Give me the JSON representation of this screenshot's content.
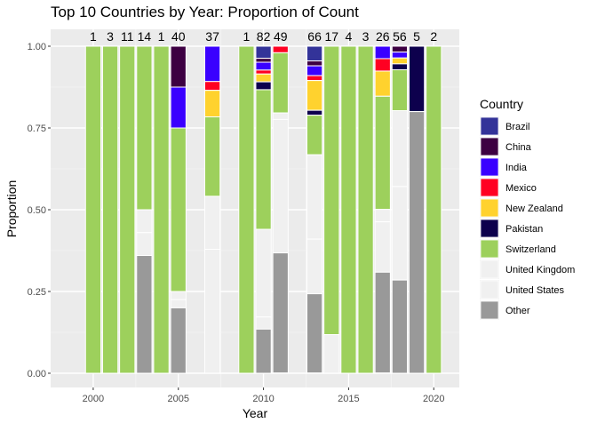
{
  "chart_data": {
    "type": "bar",
    "stacked": true,
    "title": "Top 10 Countries by Year: Proportion of Count",
    "xlabel": "Year",
    "ylabel": "Proportion",
    "xlim": [
      1997.5,
      2021.5
    ],
    "ylim": [
      0,
      1.0
    ],
    "x_ticks": [
      2000,
      2005,
      2010,
      2015,
      2020
    ],
    "y_ticks": [
      0.0,
      0.25,
      0.5,
      0.75,
      1.0
    ],
    "y_tick_labels": [
      "0.00",
      "0.25",
      "0.50",
      "0.75",
      "1.00"
    ],
    "legend": {
      "title": "Country",
      "placement": "right",
      "entries": [
        {
          "name": "Brazil",
          "color": "#333399"
        },
        {
          "name": "China",
          "color": "#3D0042"
        },
        {
          "name": "India",
          "color": "#3A00FF"
        },
        {
          "name": "Mexico",
          "color": "#FF0022"
        },
        {
          "name": "New Zealand",
          "color": "#FFD22E"
        },
        {
          "name": "Pakistan",
          "color": "#0D004D"
        },
        {
          "name": "Switzerland",
          "color": "#9DD05C"
        },
        {
          "name": "United Kingdom",
          "color": "#F0F0F0"
        },
        {
          "name": "United States",
          "color": "#F0F0F0"
        },
        {
          "name": "Other",
          "color": "#999999"
        }
      ]
    },
    "grid": true,
    "bars": [
      {
        "year": 2000,
        "label": "1",
        "segments": [
          {
            "country": "Switzerland",
            "value": 1.0
          }
        ]
      },
      {
        "year": 2001,
        "label": "3",
        "segments": [
          {
            "country": "Switzerland",
            "value": 1.0
          }
        ]
      },
      {
        "year": 2002,
        "label": "11",
        "segments": [
          {
            "country": "Switzerland",
            "value": 1.0
          }
        ]
      },
      {
        "year": 2003,
        "label": "14",
        "segments": [
          {
            "country": "Switzerland",
            "value": 0.5
          },
          {
            "country": "United Kingdom",
            "value": 0.07
          },
          {
            "country": "United States",
            "value": 0.07
          },
          {
            "country": "Other",
            "value": 0.36
          }
        ]
      },
      {
        "year": 2004,
        "label": "1",
        "segments": [
          {
            "country": "Switzerland",
            "value": 1.0
          }
        ]
      },
      {
        "year": 2005,
        "label": "40",
        "segments": [
          {
            "country": "China",
            "value": 0.125
          },
          {
            "country": "India",
            "value": 0.125
          },
          {
            "country": "Switzerland",
            "value": 0.5
          },
          {
            "country": "United Kingdom",
            "value": 0.025
          },
          {
            "country": "United States",
            "value": 0.025
          },
          {
            "country": "Other",
            "value": 0.2
          }
        ]
      },
      {
        "year": 2007,
        "label": "37",
        "segments": [
          {
            "country": "India",
            "value": 0.108
          },
          {
            "country": "Mexico",
            "value": 0.027
          },
          {
            "country": "New Zealand",
            "value": 0.081
          },
          {
            "country": "Switzerland",
            "value": 0.243
          },
          {
            "country": "United Kingdom",
            "value": 0.162
          },
          {
            "country": "United States",
            "value": 0.379
          }
        ]
      },
      {
        "year": 2009,
        "label": "1",
        "segments": [
          {
            "country": "Switzerland",
            "value": 1.0
          }
        ]
      },
      {
        "year": 2010,
        "label": "82",
        "segments": [
          {
            "country": "Brazil",
            "value": 0.037
          },
          {
            "country": "China",
            "value": 0.012
          },
          {
            "country": "India",
            "value": 0.024
          },
          {
            "country": "Mexico",
            "value": 0.012
          },
          {
            "country": "New Zealand",
            "value": 0.024
          },
          {
            "country": "Pakistan",
            "value": 0.024
          },
          {
            "country": "Switzerland",
            "value": 0.427
          },
          {
            "country": "United Kingdom",
            "value": 0.268
          },
          {
            "country": "United States",
            "value": 0.037
          },
          {
            "country": "Other",
            "value": 0.146
          }
        ]
      },
      {
        "year": 2011,
        "label": "49",
        "segments": [
          {
            "country": "Mexico",
            "value": 0.02
          },
          {
            "country": "Switzerland",
            "value": 0.184
          },
          {
            "country": "United Kingdom",
            "value": 0.02
          },
          {
            "country": "United States",
            "value": 0.408
          },
          {
            "country": "Other",
            "value": 0.367
          }
        ]
      },
      {
        "year": 2013,
        "label": "66",
        "segments": [
          {
            "country": "Brazil",
            "value": 0.045
          },
          {
            "country": "China",
            "value": 0.015
          },
          {
            "country": "India",
            "value": 0.03
          },
          {
            "country": "Mexico",
            "value": 0.015
          },
          {
            "country": "New Zealand",
            "value": 0.091
          },
          {
            "country": "Pakistan",
            "value": 0.015
          },
          {
            "country": "Switzerland",
            "value": 0.121
          },
          {
            "country": "United Kingdom",
            "value": 0.258
          },
          {
            "country": "United States",
            "value": 0.167
          },
          {
            "country": "Other",
            "value": 0.242
          }
        ]
      },
      {
        "year": 2014,
        "label": "17",
        "segments": [
          {
            "country": "Switzerland",
            "value": 0.882
          },
          {
            "country": "United States",
            "value": 0.118
          }
        ]
      },
      {
        "year": 2015,
        "label": "4",
        "segments": [
          {
            "country": "Switzerland",
            "value": 1.0
          }
        ]
      },
      {
        "year": 2016,
        "label": "3",
        "segments": [
          {
            "country": "Switzerland",
            "value": 1.0
          }
        ]
      },
      {
        "year": 2017,
        "label": "26",
        "segments": [
          {
            "country": "India",
            "value": 0.038
          },
          {
            "country": "Mexico",
            "value": 0.038
          },
          {
            "country": "New Zealand",
            "value": 0.077
          },
          {
            "country": "Switzerland",
            "value": 0.346
          },
          {
            "country": "United Kingdom",
            "value": 0.038
          },
          {
            "country": "United States",
            "value": 0.154
          },
          {
            "country": "Other",
            "value": 0.308
          }
        ]
      },
      {
        "year": 2018,
        "label": "56",
        "segments": [
          {
            "country": "China",
            "value": 0.018
          },
          {
            "country": "India",
            "value": 0.018
          },
          {
            "country": "New Zealand",
            "value": 0.018
          },
          {
            "country": "Pakistan",
            "value": 0.018
          },
          {
            "country": "Switzerland",
            "value": 0.125
          },
          {
            "country": "United Kingdom",
            "value": 0.232
          },
          {
            "country": "United States",
            "value": 0.286
          },
          {
            "country": "Other",
            "value": 0.286
          }
        ]
      },
      {
        "year": 2019,
        "label": "5",
        "segments": [
          {
            "country": "Pakistan",
            "value": 0.2
          },
          {
            "country": "Other",
            "value": 0.8
          }
        ]
      },
      {
        "year": 2020,
        "label": "2",
        "segments": [
          {
            "country": "Switzerland",
            "value": 1.0
          }
        ]
      }
    ]
  }
}
